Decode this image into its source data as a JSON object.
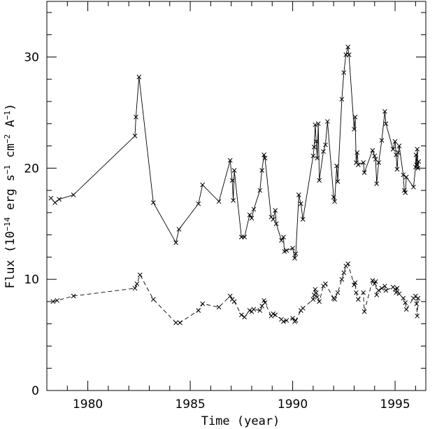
{
  "chart_data": {
    "type": "line",
    "title": "",
    "xlabel": "Time (year)",
    "ylabel_parts": [
      "Flux (10",
      "−14",
      " erg s",
      "−1",
      " cm",
      "−2",
      " A",
      "−1",
      ")"
    ],
    "xlim": [
      1978,
      1996.5
    ],
    "ylim": [
      0,
      35
    ],
    "xticks": [
      1980,
      1985,
      1990,
      1995
    ],
    "yticks": [
      0,
      10,
      20,
      30
    ],
    "x_minor_step": 1,
    "y_minor_step": 2,
    "grid": false,
    "legend": "none",
    "series": [
      {
        "style": "solid",
        "marker": "x",
        "points": [
          [
            1978.2,
            17.3
          ],
          [
            1978.4,
            16.9
          ],
          [
            1978.6,
            17.2
          ],
          [
            1979.3,
            17.6
          ],
          [
            1982.3,
            22.9
          ],
          [
            1982.35,
            24.6
          ],
          [
            1982.5,
            28.2
          ],
          [
            1983.2,
            16.9
          ],
          [
            1984.3,
            13.3
          ],
          [
            1984.45,
            14.5
          ],
          [
            1985.4,
            16.8
          ],
          [
            1985.6,
            18.5
          ],
          [
            1986.4,
            17.0
          ],
          [
            1986.95,
            20.7
          ],
          [
            1987.05,
            18.9
          ],
          [
            1987.1,
            17.1
          ],
          [
            1987.15,
            19.8
          ],
          [
            1987.5,
            13.8
          ],
          [
            1987.65,
            13.8
          ],
          [
            1987.9,
            15.8
          ],
          [
            1988.0,
            15.5
          ],
          [
            1988.1,
            16.3
          ],
          [
            1988.4,
            18.0
          ],
          [
            1988.5,
            19.8
          ],
          [
            1988.6,
            21.2
          ],
          [
            1988.65,
            20.9
          ],
          [
            1988.95,
            15.6
          ],
          [
            1989.05,
            15.4
          ],
          [
            1989.15,
            16.2
          ],
          [
            1989.2,
            15.0
          ],
          [
            1989.45,
            13.5
          ],
          [
            1989.55,
            13.8
          ],
          [
            1989.6,
            12.5
          ],
          [
            1989.7,
            12.6
          ],
          [
            1990.0,
            12.8
          ],
          [
            1990.1,
            11.9
          ],
          [
            1990.15,
            12.3
          ],
          [
            1990.3,
            17.6
          ],
          [
            1990.4,
            16.8
          ],
          [
            1990.5,
            15.4
          ],
          [
            1991.0,
            21.1
          ],
          [
            1991.05,
            21.9
          ],
          [
            1991.1,
            23.9
          ],
          [
            1991.15,
            22.4
          ],
          [
            1991.2,
            20.9
          ],
          [
            1991.25,
            24.0
          ],
          [
            1991.3,
            18.9
          ],
          [
            1991.5,
            21.5
          ],
          [
            1991.6,
            22.1
          ],
          [
            1991.7,
            24.2
          ],
          [
            1992.0,
            17.4
          ],
          [
            1992.05,
            17.0
          ],
          [
            1992.15,
            20.2
          ],
          [
            1992.2,
            18.8
          ],
          [
            1992.4,
            26.2
          ],
          [
            1992.5,
            28.6
          ],
          [
            1992.6,
            30.2
          ],
          [
            1992.7,
            30.9
          ],
          [
            1992.75,
            30.2
          ],
          [
            1993.0,
            23.5
          ],
          [
            1993.05,
            24.6
          ],
          [
            1993.1,
            20.5
          ],
          [
            1993.15,
            21.4
          ],
          [
            1993.2,
            20.3
          ],
          [
            1993.45,
            20.5
          ],
          [
            1993.5,
            19.6
          ],
          [
            1993.9,
            21.6
          ],
          [
            1994.0,
            21.1
          ],
          [
            1994.05,
            20.8
          ],
          [
            1994.1,
            18.6
          ],
          [
            1994.2,
            20.5
          ],
          [
            1994.35,
            22.5
          ],
          [
            1994.5,
            25.1
          ],
          [
            1994.55,
            24.0
          ],
          [
            1994.9,
            21.7
          ],
          [
            1995.0,
            22.4
          ],
          [
            1995.05,
            21.2
          ],
          [
            1995.1,
            19.9
          ],
          [
            1995.15,
            21.4
          ],
          [
            1995.2,
            22.0
          ],
          [
            1995.4,
            19.4
          ],
          [
            1995.45,
            18.0
          ],
          [
            1995.5,
            17.8
          ],
          [
            1995.55,
            19.2
          ],
          [
            1995.9,
            18.3
          ],
          [
            1996.0,
            20.1
          ],
          [
            1996.02,
            21.2
          ],
          [
            1996.05,
            20.3
          ],
          [
            1996.08,
            21.7
          ],
          [
            1996.12,
            20.0
          ],
          [
            1996.15,
            20.6
          ]
        ]
      },
      {
        "style": "dashed",
        "marker": "x",
        "points": [
          [
            1978.3,
            8.0
          ],
          [
            1978.5,
            8.1
          ],
          [
            1979.3,
            8.5
          ],
          [
            1982.3,
            9.2
          ],
          [
            1982.4,
            9.6
          ],
          [
            1982.55,
            10.4
          ],
          [
            1983.2,
            8.2
          ],
          [
            1984.3,
            6.1
          ],
          [
            1984.5,
            6.1
          ],
          [
            1985.4,
            7.2
          ],
          [
            1985.6,
            7.8
          ],
          [
            1986.4,
            7.5
          ],
          [
            1986.95,
            8.5
          ],
          [
            1987.05,
            8.2
          ],
          [
            1987.15,
            8.0
          ],
          [
            1987.5,
            6.8
          ],
          [
            1987.65,
            6.6
          ],
          [
            1987.9,
            7.2
          ],
          [
            1988.0,
            7.1
          ],
          [
            1988.1,
            7.3
          ],
          [
            1988.4,
            7.2
          ],
          [
            1988.5,
            7.6
          ],
          [
            1988.6,
            8.1
          ],
          [
            1988.65,
            7.9
          ],
          [
            1988.95,
            6.7
          ],
          [
            1989.05,
            6.9
          ],
          [
            1989.15,
            6.8
          ],
          [
            1989.45,
            6.4
          ],
          [
            1989.55,
            6.2
          ],
          [
            1989.7,
            6.3
          ],
          [
            1990.0,
            6.5
          ],
          [
            1990.1,
            6.2
          ],
          [
            1990.15,
            6.3
          ],
          [
            1990.4,
            7.2
          ],
          [
            1990.5,
            7.4
          ],
          [
            1991.0,
            8.2
          ],
          [
            1991.05,
            8.6
          ],
          [
            1991.1,
            9.1
          ],
          [
            1991.15,
            8.8
          ],
          [
            1991.2,
            8.4
          ],
          [
            1991.3,
            8.0
          ],
          [
            1991.5,
            9.4
          ],
          [
            1991.6,
            9.6
          ],
          [
            1992.0,
            8.3
          ],
          [
            1992.05,
            8.2
          ],
          [
            1992.2,
            8.8
          ],
          [
            1992.4,
            10.0
          ],
          [
            1992.5,
            10.6
          ],
          [
            1992.6,
            11.2
          ],
          [
            1992.7,
            11.4
          ],
          [
            1993.0,
            9.5
          ],
          [
            1993.05,
            9.7
          ],
          [
            1993.1,
            8.8
          ],
          [
            1993.2,
            8.2
          ],
          [
            1993.45,
            8.8
          ],
          [
            1993.5,
            7.1
          ],
          [
            1993.9,
            9.9
          ],
          [
            1994.0,
            9.6
          ],
          [
            1994.05,
            9.8
          ],
          [
            1994.1,
            8.6
          ],
          [
            1994.2,
            9.0
          ],
          [
            1994.35,
            9.2
          ],
          [
            1994.5,
            9.4
          ],
          [
            1994.55,
            9.0
          ],
          [
            1994.9,
            9.3
          ],
          [
            1995.0,
            9.1
          ],
          [
            1995.05,
            8.8
          ],
          [
            1995.1,
            9.2
          ],
          [
            1995.2,
            8.7
          ],
          [
            1995.4,
            8.3
          ],
          [
            1995.5,
            7.9
          ],
          [
            1995.55,
            7.3
          ],
          [
            1995.9,
            8.3
          ],
          [
            1996.0,
            8.5
          ],
          [
            1996.05,
            7.8
          ],
          [
            1996.08,
            6.7
          ],
          [
            1996.12,
            8.3
          ]
        ]
      }
    ]
  }
}
